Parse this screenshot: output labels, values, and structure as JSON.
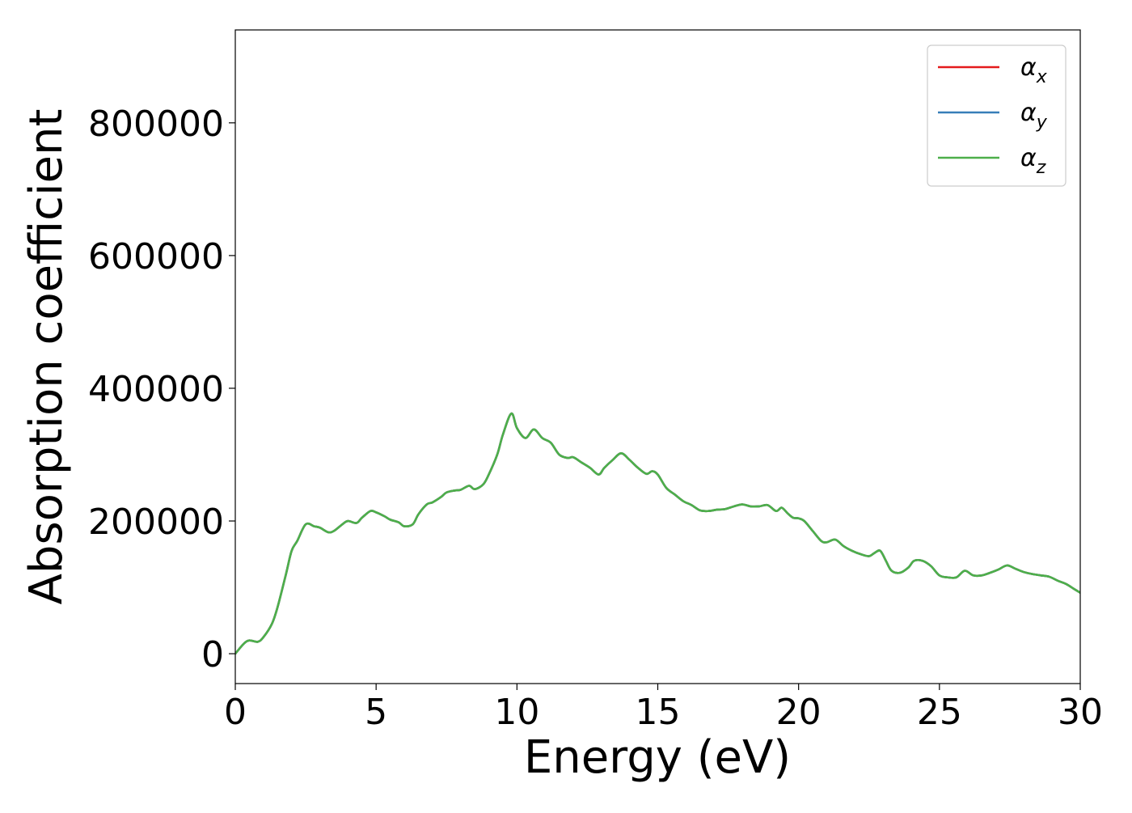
{
  "chart_data": {
    "type": "line",
    "title": "",
    "xlabel": "Energy (eV)",
    "ylabel": "Absorption coefficient",
    "xlim": [
      0,
      30
    ],
    "ylim": [
      -45000,
      940000
    ],
    "xticks": [
      0,
      5,
      10,
      15,
      20,
      25,
      30
    ],
    "yticks": [
      0,
      200000,
      400000,
      600000,
      800000
    ],
    "xtick_labels": [
      "0",
      "5",
      "10",
      "15",
      "20",
      "25",
      "30"
    ],
    "ytick_labels": [
      "0",
      "200000",
      "400000",
      "600000",
      "800000"
    ],
    "grid": false,
    "legend_position": "top-right",
    "x": [
      0,
      0.3,
      0.5,
      0.8,
      1.0,
      1.3,
      1.5,
      1.8,
      2.0,
      2.2,
      2.5,
      2.8,
      3.0,
      3.3,
      3.5,
      3.8,
      4.0,
      4.3,
      4.5,
      4.8,
      5.0,
      5.3,
      5.5,
      5.8,
      6.0,
      6.3,
      6.5,
      6.8,
      7.0,
      7.3,
      7.5,
      7.8,
      8.0,
      8.3,
      8.5,
      8.8,
      9.0,
      9.3,
      9.5,
      9.8,
      10.0,
      10.3,
      10.6,
      10.9,
      11.2,
      11.5,
      11.8,
      12.0,
      12.3,
      12.6,
      12.9,
      13.1,
      13.4,
      13.7,
      14.0,
      14.3,
      14.6,
      14.8,
      15.0,
      15.3,
      15.6,
      15.9,
      16.2,
      16.5,
      16.8,
      17.1,
      17.4,
      17.7,
      18.0,
      18.3,
      18.6,
      18.9,
      19.2,
      19.4,
      19.6,
      19.8,
      20.0,
      20.2,
      20.5,
      20.8,
      21.0,
      21.3,
      21.6,
      21.9,
      22.2,
      22.5,
      22.7,
      22.9,
      23.1,
      23.3,
      23.6,
      23.9,
      24.1,
      24.4,
      24.7,
      25.0,
      25.3,
      25.6,
      25.9,
      26.2,
      26.5,
      26.8,
      27.1,
      27.4,
      27.7,
      28.0,
      28.3,
      28.6,
      28.9,
      29.2,
      29.5,
      29.8,
      30.0
    ],
    "series": [
      {
        "name": "α_x",
        "color": "#e41a1c",
        "values": [
          0,
          15000,
          20000,
          18000,
          25000,
          45000,
          70000,
          120000,
          155000,
          170000,
          195000,
          192000,
          190000,
          183000,
          185000,
          195000,
          200000,
          197000,
          205000,
          215000,
          213000,
          207000,
          202000,
          198000,
          192000,
          195000,
          210000,
          225000,
          228000,
          236000,
          243000,
          246000,
          247000,
          253000,
          248000,
          255000,
          270000,
          300000,
          330000,
          362000,
          340000,
          325000,
          338000,
          325000,
          318000,
          300000,
          295000,
          296000,
          288000,
          280000,
          270000,
          280000,
          292000,
          302000,
          292000,
          280000,
          271000,
          275000,
          270000,
          250000,
          240000,
          230000,
          224000,
          216000,
          215000,
          217000,
          218000,
          222000,
          225000,
          222000,
          222000,
          224000,
          215000,
          220000,
          212000,
          205000,
          204000,
          200000,
          185000,
          170000,
          168000,
          172000,
          162000,
          155000,
          150000,
          147000,
          152000,
          155000,
          140000,
          125000,
          122000,
          130000,
          140000,
          140000,
          132000,
          118000,
          115000,
          115000,
          125000,
          118000,
          118000,
          122000,
          127000,
          133000,
          128000,
          123000,
          120000,
          118000,
          116000,
          110000,
          105000,
          97000,
          92000
        ]
      },
      {
        "name": "α_y",
        "color": "#377eb8",
        "values": [
          0,
          15000,
          20000,
          18000,
          25000,
          45000,
          70000,
          120000,
          155000,
          170000,
          195000,
          192000,
          190000,
          183000,
          185000,
          195000,
          200000,
          197000,
          205000,
          215000,
          213000,
          207000,
          202000,
          198000,
          192000,
          195000,
          210000,
          225000,
          228000,
          236000,
          243000,
          246000,
          247000,
          253000,
          248000,
          255000,
          270000,
          300000,
          330000,
          362000,
          340000,
          325000,
          338000,
          325000,
          318000,
          300000,
          295000,
          296000,
          288000,
          280000,
          270000,
          280000,
          292000,
          302000,
          292000,
          280000,
          271000,
          275000,
          270000,
          250000,
          240000,
          230000,
          224000,
          216000,
          215000,
          217000,
          218000,
          222000,
          225000,
          222000,
          222000,
          224000,
          215000,
          220000,
          212000,
          205000,
          204000,
          200000,
          185000,
          170000,
          168000,
          172000,
          162000,
          155000,
          150000,
          147000,
          152000,
          155000,
          140000,
          125000,
          122000,
          130000,
          140000,
          140000,
          132000,
          118000,
          115000,
          115000,
          125000,
          118000,
          118000,
          122000,
          127000,
          133000,
          128000,
          123000,
          120000,
          118000,
          116000,
          110000,
          105000,
          97000,
          92000
        ]
      },
      {
        "name": "α_z",
        "color": "#4daf4a",
        "values": [
          0,
          15000,
          20000,
          18000,
          25000,
          45000,
          70000,
          120000,
          155000,
          170000,
          195000,
          192000,
          190000,
          183000,
          185000,
          195000,
          200000,
          197000,
          205000,
          215000,
          213000,
          207000,
          202000,
          198000,
          192000,
          195000,
          210000,
          225000,
          228000,
          236000,
          243000,
          246000,
          247000,
          253000,
          248000,
          255000,
          270000,
          300000,
          330000,
          362000,
          340000,
          325000,
          338000,
          325000,
          318000,
          300000,
          295000,
          296000,
          288000,
          280000,
          270000,
          280000,
          292000,
          302000,
          292000,
          280000,
          271000,
          275000,
          270000,
          250000,
          240000,
          230000,
          224000,
          216000,
          215000,
          217000,
          218000,
          222000,
          225000,
          222000,
          222000,
          224000,
          215000,
          220000,
          212000,
          205000,
          204000,
          200000,
          185000,
          170000,
          168000,
          172000,
          162000,
          155000,
          150000,
          147000,
          152000,
          155000,
          140000,
          125000,
          122000,
          130000,
          140000,
          140000,
          132000,
          118000,
          115000,
          115000,
          125000,
          118000,
          118000,
          122000,
          127000,
          133000,
          128000,
          123000,
          120000,
          118000,
          116000,
          110000,
          105000,
          97000,
          92000
        ]
      }
    ],
    "legend": [
      {
        "symbol": "α",
        "sub": "x"
      },
      {
        "symbol": "α",
        "sub": "y"
      },
      {
        "symbol": "α",
        "sub": "z"
      }
    ]
  }
}
